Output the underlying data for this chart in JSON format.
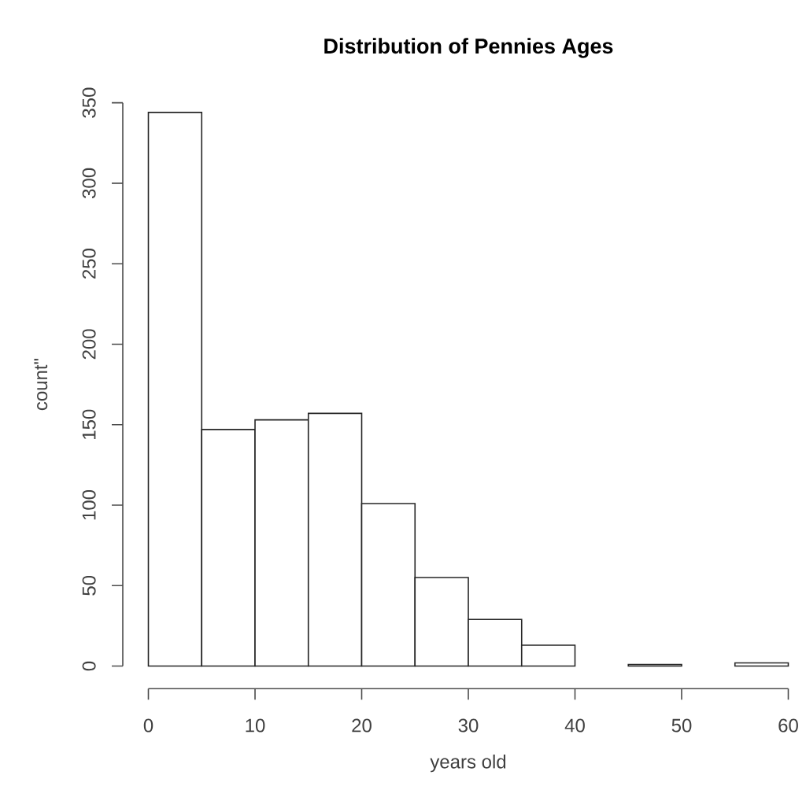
{
  "chart_data": {
    "type": "histogram",
    "title": "Distribution of Pennies Ages",
    "xlabel": "years old",
    "ylabel": "count\"",
    "bins": [
      0,
      5,
      10,
      15,
      20,
      25,
      30,
      35,
      40,
      45,
      50,
      55,
      60
    ],
    "values": [
      344,
      147,
      153,
      157,
      101,
      55,
      29,
      13,
      0,
      1,
      0,
      2
    ],
    "color": "#ffffff",
    "xlim": [
      0,
      60
    ],
    "xticks": [
      0,
      10,
      20,
      30,
      40,
      50,
      60
    ],
    "ylim": [
      0,
      350
    ],
    "yticks": [
      0,
      50,
      100,
      150,
      200,
      250,
      300,
      350
    ],
    "grid": false
  }
}
